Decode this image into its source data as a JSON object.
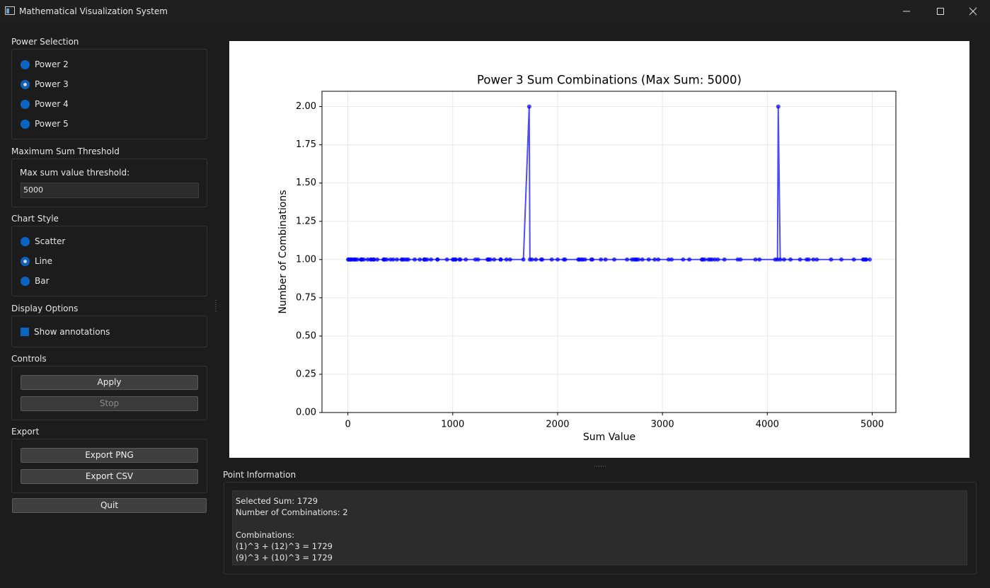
{
  "window": {
    "title": "Mathematical Visualization System"
  },
  "power": {
    "heading": "Power Selection",
    "options": [
      {
        "label": "Power 2",
        "checked": false
      },
      {
        "label": "Power 3",
        "checked": true
      },
      {
        "label": "Power 4",
        "checked": false
      },
      {
        "label": "Power 5",
        "checked": false
      }
    ]
  },
  "threshold": {
    "heading": "Maximum Sum Threshold",
    "label": "Max sum value threshold:",
    "value": "5000"
  },
  "style": {
    "heading": "Chart Style",
    "options": [
      {
        "label": "Scatter",
        "checked": false
      },
      {
        "label": "Line",
        "checked": true
      },
      {
        "label": "Bar",
        "checked": false
      }
    ]
  },
  "display": {
    "heading": "Display Options",
    "annotations": {
      "label": "Show annotations",
      "checked": true
    }
  },
  "controls": {
    "heading": "Controls",
    "apply": "Apply",
    "stop": "Stop"
  },
  "export": {
    "heading": "Export",
    "png": "Export PNG",
    "csv": "Export CSV"
  },
  "quit": "Quit",
  "info": {
    "heading": "Point Information",
    "selected": "Selected Sum: 1729",
    "count": "Number of Combinations: 2",
    "combinations_heading": "Combinations:",
    "combinations": [
      "(1)^3 + (12)^3 = 1729",
      "(9)^3 + (10)^3 = 1729"
    ]
  },
  "chart_data": {
    "type": "line",
    "title": "Power 3 Sum Combinations (Max Sum: 5000)",
    "x_label": "Sum Value",
    "y_label": "Number of Combinations",
    "color": "#0000ff",
    "grid": true,
    "x": [
      2,
      9,
      16,
      28,
      35,
      54,
      65,
      72,
      91,
      126,
      128,
      133,
      152,
      189,
      217,
      224,
      243,
      250,
      280,
      341,
      344,
      351,
      370,
      407,
      432,
      468,
      513,
      520,
      539,
      559,
      576,
      637,
      686,
      728,
      730,
      737,
      756,
      793,
      854,
      855,
      945,
      1001,
      1008,
      1024,
      1027,
      1064,
      1072,
      1125,
      1216,
      1241,
      1332,
      1339,
      1343,
      1358,
      1395,
      1456,
      1458,
      1512,
      1547,
      1674,
      1729,
      1736,
      1755,
      1792,
      1843,
      1853,
      1944,
      2000,
      2060,
      2071,
      2198,
      2205,
      2224,
      2240,
      2261,
      2322,
      2331,
      2413,
      2457,
      2540,
      2662,
      2709,
      2728,
      2745,
      2752,
      2771,
      2808,
      2869,
      2926,
      2960,
      3059,
      3087,
      3197,
      3256,
      3376,
      3383,
      3402,
      3439,
      3456,
      3473,
      3500,
      3528,
      3591,
      3718,
      3744,
      3887,
      3925,
      4075,
      4097,
      4104,
      4123,
      4160,
      4221,
      4312,
      4375,
      4394,
      4439,
      4472,
      4608,
      4706,
      4825,
      4914,
      4921,
      4940,
      4941,
      4977
    ],
    "values": [
      1,
      1,
      1,
      1,
      1,
      1,
      1,
      1,
      1,
      1,
      1,
      1,
      1,
      1,
      1,
      1,
      1,
      1,
      1,
      1,
      1,
      1,
      1,
      1,
      1,
      1,
      1,
      1,
      1,
      1,
      1,
      1,
      1,
      1,
      1,
      1,
      1,
      1,
      1,
      1,
      1,
      1,
      1,
      1,
      1,
      1,
      1,
      1,
      1,
      1,
      1,
      1,
      1,
      1,
      1,
      1,
      1,
      1,
      1,
      1,
      2,
      1,
      1,
      1,
      1,
      1,
      1,
      1,
      1,
      1,
      1,
      1,
      1,
      1,
      1,
      1,
      1,
      1,
      1,
      1,
      1,
      1,
      1,
      1,
      1,
      1,
      1,
      1,
      1,
      1,
      1,
      1,
      1,
      1,
      1,
      1,
      1,
      1,
      1,
      1,
      1,
      1,
      1,
      1,
      1,
      1,
      1,
      1,
      1,
      2,
      1,
      1,
      1,
      1,
      1,
      1,
      1,
      1,
      1,
      1,
      1,
      1,
      1,
      1,
      1,
      1
    ],
    "xlim": [
      -247,
      5226
    ],
    "ylim": [
      0,
      2.1
    ],
    "xticks": [
      0,
      1000,
      2000,
      3000,
      4000,
      5000
    ],
    "yticks": [
      {
        "value": 0,
        "label": "0.00"
      },
      {
        "value": 0.25,
        "label": "0.25"
      },
      {
        "value": 0.5,
        "label": "0.50"
      },
      {
        "value": 0.75,
        "label": "0.75"
      },
      {
        "value": 1,
        "label": "1.00"
      },
      {
        "value": 1.25,
        "label": "1.25"
      },
      {
        "value": 1.5,
        "label": "1.50"
      },
      {
        "value": 1.75,
        "label": "1.75"
      },
      {
        "value": 2,
        "label": "2.00"
      }
    ]
  }
}
